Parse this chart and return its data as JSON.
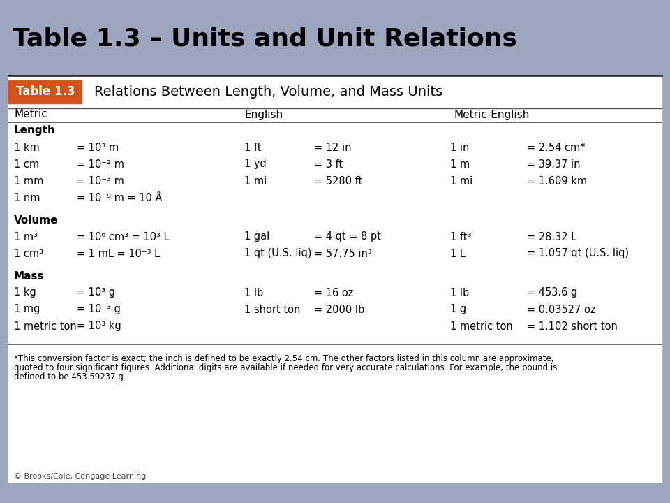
{
  "title": "Table 1.3 – Units and Unit Relations",
  "title_bg": "#9da5bf",
  "table_header": "Relations Between Length, Volume, and Mass Units",
  "table_label": "Table 1.3",
  "table_label_bg": "#d4521a",
  "sections": [
    {
      "name": "Length",
      "metric_rows": [
        [
          "1 km",
          "= 10³ m"
        ],
        [
          "1 cm",
          "= 10⁻² m"
        ],
        [
          "1 mm",
          "= 10⁻³ m"
        ],
        [
          "1 nm",
          "= 10⁻⁹ m = 10 Å"
        ]
      ],
      "english_rows": [
        [
          "1 ft",
          "= 12 in"
        ],
        [
          "1 yd",
          "= 3 ft"
        ],
        [
          "1 mi",
          "= 5280 ft"
        ],
        [
          "",
          ""
        ]
      ],
      "metric_english_rows": [
        [
          "1 in",
          "= 2.54 cm*"
        ],
        [
          "1 m",
          "= 39.37 in"
        ],
        [
          "1 mi",
          "= 1.609 km"
        ],
        [
          "",
          ""
        ]
      ]
    },
    {
      "name": "Volume",
      "metric_rows": [
        [
          "1 m³",
          "= 10⁶ cm³ = 10³ L"
        ],
        [
          "1 cm³",
          "= 1 mL = 10⁻³ L"
        ]
      ],
      "english_rows": [
        [
          "1 gal",
          "= 4 qt = 8 pt"
        ],
        [
          "1 qt (U.S. liq)",
          "= 57.75 in³"
        ]
      ],
      "metric_english_rows": [
        [
          "1 ft³",
          "= 28.32 L"
        ],
        [
          "1 L",
          "= 1.057 qt (U.S. liq)"
        ]
      ]
    },
    {
      "name": "Mass",
      "metric_rows": [
        [
          "1 kg",
          "= 10³ g"
        ],
        [
          "1 mg",
          "= 10⁻³ g"
        ],
        [
          "1 metric ton",
          "= 10³ kg"
        ]
      ],
      "english_rows": [
        [
          "1 lb",
          "= 16 oz"
        ],
        [
          "1 short ton",
          "= 2000 lb"
        ],
        [
          "",
          ""
        ]
      ],
      "metric_english_rows": [
        [
          "1 lb",
          "= 453.6 g"
        ],
        [
          "1 g",
          "= 0.03527 oz"
        ],
        [
          "1 metric ton",
          "= 1.102 short ton"
        ]
      ]
    }
  ],
  "footnote_lines": [
    "*This conversion factor is exact; the inch is defined to be exactly 2.54 cm. The other factors listed in this column are approximate,",
    "quoted to four significant figures. Additional digits are available if needed for very accurate calculations. For example, the pound is",
    "defined to be 453.59237 g."
  ],
  "copyright": "© Brooks/Cole, Cengage Learning",
  "table_bg": "#ffffff",
  "orange_bg": "#d4521a",
  "line_color": "#555555",
  "title_fontsize": 26,
  "header_fontsize": 14,
  "col_header_fontsize": 11,
  "section_fontsize": 11,
  "row_fontsize": 10.5,
  "footnote_fontsize": 8.5,
  "copyright_fontsize": 8
}
